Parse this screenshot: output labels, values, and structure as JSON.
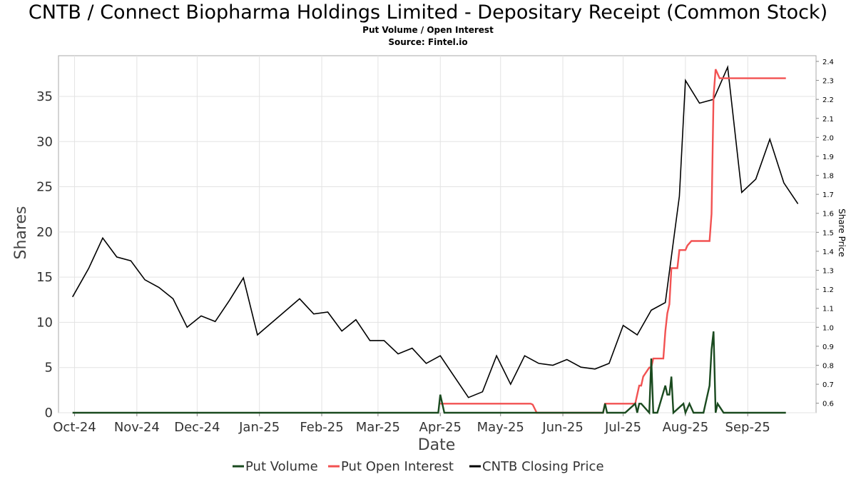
{
  "page": {
    "title": "CNTB / Connect Biopharma Holdings Limited - Depositary Receipt (Common Stock)",
    "subtitle": "Put Volume / Open Interest",
    "source": "Source: Fintel.io"
  },
  "chart_data": {
    "type": "line",
    "title": "CNTB / Connect Biopharma Holdings Limited - Depositary Receipt (Common Stock)",
    "subtitle": "Put Volume / Open Interest",
    "xlabel": "Date",
    "ylabel": "Shares",
    "y2label": "Share Price",
    "xlim": [
      "2024-09-23",
      "2025-10-05"
    ],
    "ylim": [
      0,
      39.5
    ],
    "y2lim": [
      0.55,
      2.43
    ],
    "grid": true,
    "legend_position": "bottom",
    "x_ticks": [
      {
        "label": "Oct-24",
        "date": "2024-10-01"
      },
      {
        "label": "Nov-24",
        "date": "2024-11-01"
      },
      {
        "label": "Dec-24",
        "date": "2024-12-01"
      },
      {
        "label": "Jan-25",
        "date": "2025-01-01"
      },
      {
        "label": "Feb-25",
        "date": "2025-02-01"
      },
      {
        "label": "Mar-25",
        "date": "2025-03-01"
      },
      {
        "label": "Apr-25",
        "date": "2025-04-01"
      },
      {
        "label": "May-25",
        "date": "2025-05-01"
      },
      {
        "label": "Jun-25",
        "date": "2025-06-01"
      },
      {
        "label": "Jul-25",
        "date": "2025-07-01"
      },
      {
        "label": "Aug-25",
        "date": "2025-08-01"
      },
      {
        "label": "Sep-25",
        "date": "2025-09-01"
      }
    ],
    "y_ticks": [
      "0",
      "5",
      "10",
      "15",
      "20",
      "25",
      "30",
      "35"
    ],
    "y2_ticks": [
      "0.6",
      "0.7",
      "0.8",
      "0.9",
      "1.0",
      "1.1",
      "1.2",
      "1.3",
      "1.4",
      "1.5",
      "1.6",
      "1.7",
      "1.8",
      "1.9",
      "2.0",
      "2.1",
      "2.2",
      "2.3",
      "2.4"
    ],
    "series": [
      {
        "name": "Put Volume",
        "color": "#1a4a1f",
        "axis": "left",
        "points": [
          [
            "2024-09-30",
            0
          ],
          [
            "2025-03-31",
            0
          ],
          [
            "2025-04-01",
            2
          ],
          [
            "2025-04-03",
            0
          ],
          [
            "2025-06-21",
            0
          ],
          [
            "2025-06-22",
            1
          ],
          [
            "2025-06-23",
            0
          ],
          [
            "2025-07-02",
            0
          ],
          [
            "2025-07-07",
            1
          ],
          [
            "2025-07-08",
            0
          ],
          [
            "2025-07-09",
            1
          ],
          [
            "2025-07-10",
            1
          ],
          [
            "2025-07-14",
            0
          ],
          [
            "2025-07-15",
            6
          ],
          [
            "2025-07-16",
            0
          ],
          [
            "2025-07-18",
            0
          ],
          [
            "2025-07-22",
            3
          ],
          [
            "2025-07-23",
            2
          ],
          [
            "2025-07-24",
            2
          ],
          [
            "2025-07-25",
            4
          ],
          [
            "2025-07-26",
            0
          ],
          [
            "2025-07-31",
            1
          ],
          [
            "2025-08-01",
            0
          ],
          [
            "2025-08-03",
            1
          ],
          [
            "2025-08-05",
            0
          ],
          [
            "2025-08-10",
            0
          ],
          [
            "2025-08-13",
            3
          ],
          [
            "2025-08-14",
            7
          ],
          [
            "2025-08-15",
            9
          ],
          [
            "2025-08-16",
            0
          ],
          [
            "2025-08-17",
            1
          ],
          [
            "2025-08-20",
            0
          ],
          [
            "2025-09-20",
            0
          ]
        ]
      },
      {
        "name": "Put Open Interest",
        "color": "#f25252",
        "axis": "left",
        "points": [
          [
            "2025-04-01",
            1
          ],
          [
            "2025-05-16",
            1
          ],
          [
            "2025-05-17",
            0.9
          ],
          [
            "2025-05-19",
            0
          ],
          [
            "2025-06-21",
            0
          ],
          [
            "2025-06-22",
            1
          ],
          [
            "2025-07-07",
            1
          ],
          [
            "2025-07-09",
            3
          ],
          [
            "2025-07-10",
            3
          ],
          [
            "2025-07-11",
            4
          ],
          [
            "2025-07-14",
            5
          ],
          [
            "2025-07-15",
            5
          ],
          [
            "2025-07-16",
            6
          ],
          [
            "2025-07-21",
            6
          ],
          [
            "2025-07-22",
            9
          ],
          [
            "2025-07-23",
            11
          ],
          [
            "2025-07-24",
            12
          ],
          [
            "2025-07-25",
            16
          ],
          [
            "2025-07-28",
            16
          ],
          [
            "2025-07-29",
            18
          ],
          [
            "2025-08-01",
            18
          ],
          [
            "2025-08-02",
            18.5
          ],
          [
            "2025-08-04",
            19
          ],
          [
            "2025-08-13",
            19
          ],
          [
            "2025-08-14",
            22
          ],
          [
            "2025-08-15",
            35
          ],
          [
            "2025-08-16",
            38
          ],
          [
            "2025-08-18",
            37
          ],
          [
            "2025-09-20",
            37
          ]
        ]
      },
      {
        "name": "CNTB Closing Price",
        "color": "#000000",
        "axis": "right",
        "points": [
          [
            "2024-09-30",
            1.16
          ],
          [
            "2024-10-08",
            1.31
          ],
          [
            "2024-10-15",
            1.47
          ],
          [
            "2024-10-22",
            1.37
          ],
          [
            "2024-10-29",
            1.35
          ],
          [
            "2024-11-05",
            1.25
          ],
          [
            "2024-11-12",
            1.21
          ],
          [
            "2024-11-19",
            1.15
          ],
          [
            "2024-11-26",
            1.0
          ],
          [
            "2024-12-03",
            1.06
          ],
          [
            "2024-12-10",
            1.03
          ],
          [
            "2024-12-17",
            1.14
          ],
          [
            "2024-12-24",
            1.26
          ],
          [
            "2024-12-31",
            0.96
          ],
          [
            "2025-01-21",
            1.15
          ],
          [
            "2025-01-28",
            1.07
          ],
          [
            "2025-02-04",
            1.08
          ],
          [
            "2025-02-11",
            0.98
          ],
          [
            "2025-02-18",
            1.04
          ],
          [
            "2025-02-25",
            0.93
          ],
          [
            "2025-03-04",
            0.93
          ],
          [
            "2025-03-11",
            0.86
          ],
          [
            "2025-03-18",
            0.89
          ],
          [
            "2025-03-25",
            0.81
          ],
          [
            "2025-04-01",
            0.85
          ],
          [
            "2025-04-15",
            0.63
          ],
          [
            "2025-04-22",
            0.66
          ],
          [
            "2025-04-29",
            0.85
          ],
          [
            "2025-05-06",
            0.7
          ],
          [
            "2025-05-13",
            0.85
          ],
          [
            "2025-05-20",
            0.81
          ],
          [
            "2025-05-27",
            0.8
          ],
          [
            "2025-06-03",
            0.83
          ],
          [
            "2025-06-10",
            0.79
          ],
          [
            "2025-06-17",
            0.78
          ],
          [
            "2025-06-24",
            0.81
          ],
          [
            "2025-07-01",
            1.01
          ],
          [
            "2025-07-08",
            0.96
          ],
          [
            "2025-07-15",
            1.09
          ],
          [
            "2025-07-22",
            1.13
          ],
          [
            "2025-07-29",
            1.69
          ],
          [
            "2025-08-01",
            2.3
          ],
          [
            "2025-08-08",
            2.18
          ],
          [
            "2025-08-15",
            2.2
          ],
          [
            "2025-08-22",
            2.37
          ],
          [
            "2025-08-29",
            1.71
          ],
          [
            "2025-09-05",
            1.78
          ],
          [
            "2025-09-12",
            1.99
          ],
          [
            "2025-09-19",
            1.76
          ],
          [
            "2025-09-26",
            1.65
          ]
        ]
      }
    ]
  }
}
